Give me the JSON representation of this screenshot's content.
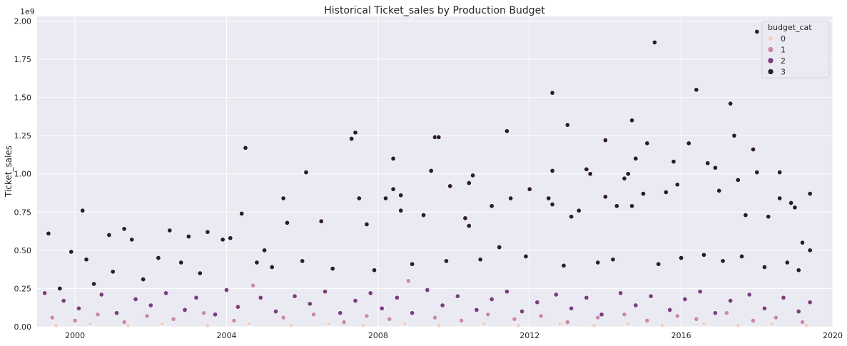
{
  "chart_data": {
    "type": "scatter",
    "title": "Historical Ticket_sales by Production Budget",
    "xlabel": "",
    "ylabel": "Ticket_sales",
    "y_offset_label": "1e9",
    "xlim": [
      1999.0,
      2020.0
    ],
    "ylim": [
      0,
      2.03
    ],
    "x_ticks": [
      2000,
      2004,
      2008,
      2012,
      2016,
      2020
    ],
    "x_tick_labels": [
      "2000",
      "2004",
      "2008",
      "2012",
      "2016",
      "2020"
    ],
    "y_ticks": [
      0,
      0.25,
      0.5,
      0.75,
      1.0,
      1.25,
      1.5,
      1.75,
      2.0
    ],
    "y_tick_labels": [
      "0.00",
      "0.25",
      "0.50",
      "0.75",
      "1.00",
      "1.25",
      "1.50",
      "1.75",
      "2.00"
    ],
    "grid": true,
    "legend": {
      "title": "budget_cat",
      "placement": "top-right",
      "entries": [
        {
          "label": "0",
          "color": "#f0d2c8"
        },
        {
          "label": "1",
          "color": "#c88aa8"
        },
        {
          "label": "2",
          "color": "#7a3f7e"
        },
        {
          "label": "3",
          "color": "#2d1b34"
        }
      ]
    },
    "series": [
      {
        "name": "3",
        "color": "#2d1b34",
        "points": [
          [
            1999.3,
            0.61
          ],
          [
            1999.9,
            0.49
          ],
          [
            2000.2,
            0.76
          ],
          [
            2000.3,
            0.44
          ],
          [
            2000.9,
            0.6
          ],
          [
            2001.3,
            0.64
          ],
          [
            2001.5,
            0.57
          ],
          [
            2002.5,
            0.63
          ],
          [
            2003.0,
            0.59
          ],
          [
            2003.5,
            0.62
          ],
          [
            2003.9,
            0.57
          ],
          [
            2004.1,
            0.58
          ],
          [
            2004.4,
            0.74
          ],
          [
            2004.5,
            1.17
          ],
          [
            2005.0,
            0.5
          ],
          [
            2005.5,
            0.84
          ],
          [
            2005.6,
            0.68
          ],
          [
            2006.1,
            1.01
          ],
          [
            2006.5,
            0.69
          ],
          [
            2007.3,
            1.23
          ],
          [
            2007.4,
            1.27
          ],
          [
            2007.5,
            0.84
          ],
          [
            2007.7,
            0.67
          ],
          [
            2008.2,
            0.84
          ],
          [
            2008.4,
            0.9
          ],
          [
            2008.4,
            1.1
          ],
          [
            2008.6,
            0.86
          ],
          [
            2008.6,
            0.76
          ],
          [
            2009.2,
            0.73
          ],
          [
            2009.4,
            1.02
          ],
          [
            2009.5,
            1.24
          ],
          [
            2009.6,
            1.24
          ],
          [
            2009.9,
            0.92
          ],
          [
            2010.3,
            0.71
          ],
          [
            2010.4,
            0.66
          ],
          [
            2010.5,
            0.99
          ],
          [
            2010.4,
            0.94
          ],
          [
            2011.0,
            0.79
          ],
          [
            2011.4,
            1.28
          ],
          [
            2011.5,
            0.84
          ],
          [
            2012.0,
            0.9
          ],
          [
            2012.5,
            0.84
          ],
          [
            2012.6,
            0.8
          ],
          [
            2012.6,
            1.02
          ],
          [
            2012.6,
            1.53
          ],
          [
            2013.0,
            1.32
          ],
          [
            2013.1,
            0.72
          ],
          [
            2013.3,
            0.76
          ],
          [
            2013.5,
            1.03
          ],
          [
            2013.6,
            1.0
          ],
          [
            2014.0,
            1.22
          ],
          [
            2014.0,
            0.85
          ],
          [
            2014.3,
            0.79
          ],
          [
            2014.5,
            0.97
          ],
          [
            2014.6,
            1.0
          ],
          [
            2014.7,
            0.79
          ],
          [
            2014.7,
            1.35
          ],
          [
            2014.8,
            1.1
          ],
          [
            2015.0,
            0.87
          ],
          [
            2015.1,
            1.2
          ],
          [
            2015.3,
            1.86
          ],
          [
            2015.6,
            0.88
          ],
          [
            2015.8,
            1.08
          ],
          [
            2015.9,
            0.93
          ],
          [
            2016.2,
            1.2
          ],
          [
            2016.4,
            1.55
          ],
          [
            2016.7,
            1.07
          ],
          [
            2016.9,
            1.04
          ],
          [
            2017.0,
            0.89
          ],
          [
            2017.3,
            1.46
          ],
          [
            2017.4,
            1.25
          ],
          [
            2017.5,
            0.96
          ],
          [
            2017.7,
            0.73
          ],
          [
            2017.9,
            1.16
          ],
          [
            2018.0,
            1.93
          ],
          [
            2018.0,
            1.01
          ],
          [
            2018.3,
            0.72
          ],
          [
            2018.6,
            1.01
          ],
          [
            2018.6,
            0.84
          ],
          [
            2018.9,
            0.81
          ],
          [
            2019.0,
            0.78
          ],
          [
            2019.2,
            0.55
          ],
          [
            2019.4,
            0.87
          ],
          [
            2019.4,
            0.5
          ],
          [
            1999.6,
            0.25
          ],
          [
            2000.5,
            0.28
          ],
          [
            2001.0,
            0.36
          ],
          [
            2001.8,
            0.31
          ],
          [
            2002.2,
            0.45
          ],
          [
            2002.8,
            0.42
          ],
          [
            2003.3,
            0.35
          ],
          [
            2004.8,
            0.42
          ],
          [
            2005.2,
            0.39
          ],
          [
            2006.0,
            0.43
          ],
          [
            2006.8,
            0.38
          ],
          [
            2007.9,
            0.37
          ],
          [
            2008.9,
            0.41
          ],
          [
            2009.8,
            0.43
          ],
          [
            2010.7,
            0.44
          ],
          [
            2011.2,
            0.52
          ],
          [
            2011.9,
            0.46
          ],
          [
            2012.9,
            0.4
          ],
          [
            2013.8,
            0.42
          ],
          [
            2014.2,
            0.44
          ],
          [
            2015.4,
            0.41
          ],
          [
            2016.0,
            0.45
          ],
          [
            2016.6,
            0.47
          ],
          [
            2017.1,
            0.43
          ],
          [
            2017.6,
            0.46
          ],
          [
            2018.2,
            0.39
          ],
          [
            2018.8,
            0.42
          ],
          [
            2019.1,
            0.37
          ]
        ]
      },
      {
        "name": "2",
        "color": "#7a3f7e",
        "points": [
          [
            1999.2,
            0.22
          ],
          [
            1999.7,
            0.17
          ],
          [
            2000.1,
            0.12
          ],
          [
            2000.7,
            0.21
          ],
          [
            2001.1,
            0.09
          ],
          [
            2001.6,
            0.18
          ],
          [
            2002.0,
            0.14
          ],
          [
            2002.4,
            0.22
          ],
          [
            2002.9,
            0.11
          ],
          [
            2003.2,
            0.19
          ],
          [
            2003.7,
            0.08
          ],
          [
            2004.0,
            0.24
          ],
          [
            2004.3,
            0.13
          ],
          [
            2004.9,
            0.19
          ],
          [
            2005.3,
            0.1
          ],
          [
            2005.8,
            0.2
          ],
          [
            2006.2,
            0.15
          ],
          [
            2006.6,
            0.23
          ],
          [
            2007.0,
            0.09
          ],
          [
            2007.4,
            0.17
          ],
          [
            2007.8,
            0.22
          ],
          [
            2008.1,
            0.12
          ],
          [
            2008.5,
            0.19
          ],
          [
            2008.9,
            0.09
          ],
          [
            2009.3,
            0.24
          ],
          [
            2009.7,
            0.14
          ],
          [
            2010.1,
            0.2
          ],
          [
            2010.6,
            0.11
          ],
          [
            2011.0,
            0.18
          ],
          [
            2011.4,
            0.23
          ],
          [
            2011.8,
            0.1
          ],
          [
            2012.2,
            0.16
          ],
          [
            2012.7,
            0.21
          ],
          [
            2013.1,
            0.12
          ],
          [
            2013.5,
            0.19
          ],
          [
            2013.9,
            0.08
          ],
          [
            2014.4,
            0.22
          ],
          [
            2014.8,
            0.14
          ],
          [
            2015.2,
            0.2
          ],
          [
            2015.7,
            0.11
          ],
          [
            2016.1,
            0.18
          ],
          [
            2016.5,
            0.23
          ],
          [
            2016.9,
            0.09
          ],
          [
            2017.3,
            0.17
          ],
          [
            2017.8,
            0.21
          ],
          [
            2018.2,
            0.12
          ],
          [
            2018.7,
            0.19
          ],
          [
            2019.1,
            0.1
          ],
          [
            2019.4,
            0.16
          ]
        ]
      },
      {
        "name": "1",
        "color": "#c88aa8",
        "points": [
          [
            1999.4,
            0.06
          ],
          [
            2000.0,
            0.04
          ],
          [
            2000.6,
            0.08
          ],
          [
            2001.3,
            0.03
          ],
          [
            2001.9,
            0.07
          ],
          [
            2002.6,
            0.05
          ],
          [
            2003.4,
            0.09
          ],
          [
            2004.2,
            0.04
          ],
          [
            2004.7,
            0.27
          ],
          [
            2005.5,
            0.06
          ],
          [
            2006.3,
            0.08
          ],
          [
            2007.1,
            0.03
          ],
          [
            2007.7,
            0.07
          ],
          [
            2008.3,
            0.05
          ],
          [
            2008.8,
            0.3
          ],
          [
            2009.5,
            0.06
          ],
          [
            2010.2,
            0.04
          ],
          [
            2010.9,
            0.08
          ],
          [
            2011.6,
            0.05
          ],
          [
            2012.3,
            0.07
          ],
          [
            2013.0,
            0.03
          ],
          [
            2013.8,
            0.06
          ],
          [
            2014.5,
            0.08
          ],
          [
            2015.1,
            0.04
          ],
          [
            2015.9,
            0.07
          ],
          [
            2016.4,
            0.05
          ],
          [
            2017.2,
            0.09
          ],
          [
            2017.9,
            0.04
          ],
          [
            2018.5,
            0.06
          ],
          [
            2019.2,
            0.03
          ]
        ]
      },
      {
        "name": "0",
        "color": "#f0d2c8",
        "points": [
          [
            1999.5,
            0.01
          ],
          [
            2000.4,
            0.02
          ],
          [
            2001.4,
            0.01
          ],
          [
            2002.3,
            0.02
          ],
          [
            2003.5,
            0.01
          ],
          [
            2004.6,
            0.02
          ],
          [
            2005.7,
            0.01
          ],
          [
            2006.7,
            0.02
          ],
          [
            2007.6,
            0.01
          ],
          [
            2008.7,
            0.02
          ],
          [
            2009.6,
            0.01
          ],
          [
            2010.8,
            0.02
          ],
          [
            2011.7,
            0.01
          ],
          [
            2012.8,
            0.02
          ],
          [
            2013.7,
            0.01
          ],
          [
            2014.6,
            0.02
          ],
          [
            2015.5,
            0.01
          ],
          [
            2016.6,
            0.02
          ],
          [
            2017.5,
            0.01
          ],
          [
            2018.4,
            0.02
          ],
          [
            2019.3,
            0.01
          ]
        ]
      }
    ]
  }
}
